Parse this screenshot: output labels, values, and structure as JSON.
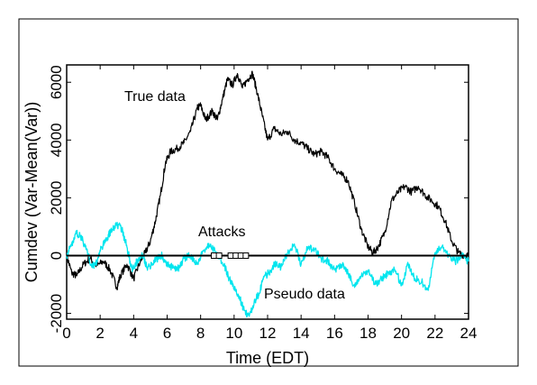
{
  "chart_data": {
    "type": "line",
    "xlabel": "Time (EDT)",
    "ylabel": "Cumdev (Var-Mean(Var))",
    "xlim": [
      0,
      24
    ],
    "ylim": [
      -2200,
      6600
    ],
    "x_ticks": [
      0,
      2,
      4,
      6,
      8,
      10,
      12,
      14,
      16,
      18,
      20,
      22,
      24
    ],
    "x_tick_labels": [
      "0",
      "2",
      "4",
      "6",
      "8",
      "10",
      "12",
      "14",
      "16",
      "18",
      "20",
      "22",
      "24"
    ],
    "y_ticks": [
      -2000,
      0,
      2000,
      4000,
      6000
    ],
    "y_tick_labels": [
      "-2000",
      "0",
      "2000",
      "4000",
      "6000"
    ],
    "zero_line": true,
    "grid": false,
    "colors": {
      "true_data": "#000000",
      "pseudo_data": "#00e5ee",
      "axis": "#000000"
    },
    "annotations": {
      "true_data": "True data",
      "attacks": "Attacks",
      "pseudo_data": "Pseudo data"
    },
    "attack_times": [
      8.8,
      9.1,
      9.8,
      10.1,
      10.4,
      10.7
    ],
    "series": [
      {
        "name": "True data",
        "color": "#000000",
        "x": [
          0,
          0.3,
          0.6,
          1.0,
          1.4,
          1.8,
          2.2,
          2.6,
          3.0,
          3.2,
          3.6,
          4.0,
          4.4,
          4.7,
          5.0,
          5.3,
          5.6,
          5.9,
          6.2,
          6.6,
          7.0,
          7.4,
          7.8,
          8.0,
          8.3,
          8.7,
          9.0,
          9.3,
          9.6,
          9.9,
          10.2,
          10.5,
          10.8,
          11.1,
          11.4,
          11.7,
          12.0,
          12.4,
          12.8,
          13.2,
          13.6,
          14.0,
          14.4,
          14.8,
          15.2,
          15.6,
          16.0,
          16.4,
          16.8,
          17.2,
          17.6,
          18.0,
          18.3,
          18.6,
          19.0,
          19.4,
          19.8,
          20.2,
          20.6,
          21.0,
          21.4,
          21.8,
          22.2,
          22.6,
          23.0,
          23.4,
          23.8,
          24.0
        ],
        "y": [
          0,
          -600,
          -700,
          -300,
          -100,
          -350,
          -200,
          -500,
          -1100,
          -700,
          -300,
          -800,
          -200,
          100,
          500,
          1200,
          2100,
          3200,
          3600,
          3700,
          3900,
          4300,
          5100,
          5200,
          4700,
          5000,
          4700,
          5400,
          6100,
          5900,
          6300,
          5800,
          6100,
          6300,
          5600,
          4800,
          4000,
          4400,
          4200,
          4300,
          4000,
          3900,
          3700,
          3500,
          3600,
          3400,
          3000,
          2800,
          2600,
          1800,
          900,
          300,
          100,
          300,
          800,
          1900,
          2200,
          2400,
          2200,
          2400,
          2100,
          1900,
          1700,
          1200,
          500,
          100,
          0,
          0
        ]
      },
      {
        "name": "Pseudo data",
        "color": "#00e5ee",
        "x": [
          0,
          0.3,
          0.6,
          0.9,
          1.2,
          1.5,
          1.8,
          2.1,
          2.4,
          2.7,
          3.0,
          3.3,
          3.6,
          3.9,
          4.2,
          4.5,
          4.8,
          5.1,
          5.4,
          5.7,
          6.0,
          6.3,
          6.6,
          7.0,
          7.4,
          7.8,
          8.2,
          8.6,
          9.0,
          9.4,
          9.7,
          10.0,
          10.3,
          10.6,
          10.9,
          11.2,
          11.5,
          11.8,
          12.1,
          12.4,
          12.8,
          13.2,
          13.6,
          14.0,
          14.4,
          14.8,
          15.2,
          15.6,
          16.0,
          16.4,
          16.8,
          17.2,
          17.6,
          18.0,
          18.4,
          18.8,
          19.2,
          19.6,
          20.0,
          20.4,
          20.8,
          21.2,
          21.6,
          22.0,
          22.4,
          22.8,
          23.2,
          23.6,
          24.0
        ],
        "y": [
          0,
          400,
          800,
          600,
          200,
          -400,
          -200,
          300,
          600,
          900,
          1100,
          900,
          300,
          -500,
          -200,
          100,
          -400,
          -300,
          -100,
          0,
          -300,
          -400,
          -500,
          -100,
          0,
          -300,
          200,
          400,
          0,
          -300,
          -800,
          -1100,
          -1400,
          -1900,
          -2100,
          -1600,
          -1300,
          -700,
          -600,
          -300,
          -400,
          100,
          400,
          -300,
          300,
          200,
          -100,
          -200,
          -500,
          -300,
          -600,
          -1100,
          -700,
          -500,
          -1000,
          -800,
          -600,
          -500,
          -1000,
          -300,
          -800,
          -900,
          -1200,
          100,
          300,
          0,
          -200,
          0,
          -200
        ]
      }
    ]
  }
}
